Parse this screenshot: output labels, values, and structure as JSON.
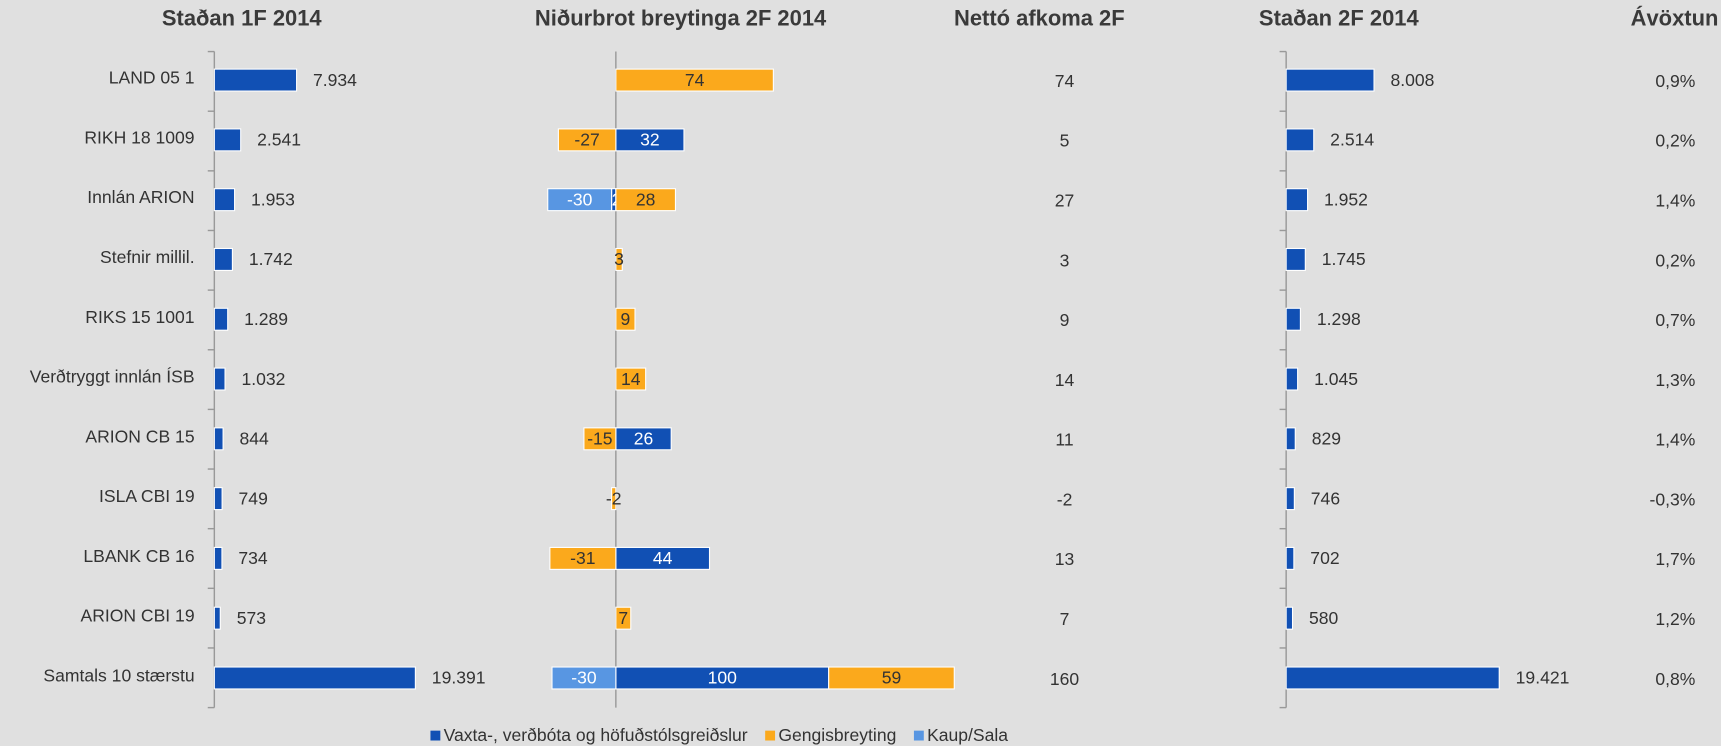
{
  "chart_data": [
    {
      "type": "hbar",
      "title": "Staðan 1F 2014",
      "categories": [
        "LAND 05 1",
        "RIKH 18 1009",
        "Innlán ARION",
        "Stefnir millil.",
        "RIKS 15 1001",
        "Verðtryggt innlán ÍSB",
        "ARION CB 15",
        "ISLA CBI 19",
        "LBANK CB 16",
        "ARION CBI 19",
        "Samtals 10 stærstu"
      ],
      "values": [
        7934,
        2541,
        1953,
        1742,
        1289,
        1032,
        844,
        749,
        734,
        573,
        19391
      ],
      "value_labels": [
        "7.934",
        "2.541",
        "1.953",
        "1.742",
        "1.289",
        "1.032",
        "844",
        "749",
        "734",
        "573",
        "19.391"
      ],
      "color": "#1150b4"
    },
    {
      "type": "stacked",
      "title": "Niðurbrot breytinga 2F 2014",
      "legend": "bottom",
      "series": [
        {
          "name": "Vaxta-, verðbóta og höfuðstólsgreiðslur",
          "color": "#1150b4",
          "values": [
            null,
            32,
            -2,
            null,
            null,
            null,
            26,
            null,
            44,
            null,
            100
          ]
        },
        {
          "name": "Gengisbreyting",
          "color": "#fba91c",
          "values": [
            74,
            -27,
            28,
            3,
            9,
            14,
            -15,
            -2,
            -31,
            7,
            59
          ]
        },
        {
          "name": "Kaup/Sala",
          "color": "#5896e2",
          "values": [
            null,
            null,
            -30,
            null,
            null,
            null,
            null,
            null,
            null,
            null,
            -30
          ]
        }
      ]
    },
    {
      "type": "labels",
      "title": "Nettó afkoma 2F",
      "values": [
        74,
        5,
        27,
        3,
        9,
        14,
        11,
        -2,
        13,
        7,
        160
      ]
    },
    {
      "type": "hbar",
      "title": "Staðan 2F 2014",
      "values": [
        8008,
        2514,
        1952,
        1745,
        1298,
        1045,
        829,
        746,
        702,
        580,
        19421
      ],
      "value_labels": [
        "8.008",
        "2.514",
        "1.952",
        "1.745",
        "1.298",
        "1.045",
        "829",
        "746",
        "702",
        "580",
        "19.421"
      ],
      "color": "#1150b4"
    },
    {
      "type": "labels",
      "title": "Ávöxtun",
      "values": [
        0.9,
        0.2,
        1.4,
        0.2,
        0.7,
        1.3,
        1.4,
        -0.3,
        1.7,
        1.2,
        0.8
      ],
      "value_labels": [
        "0,9%",
        "0,2%",
        "1,4%",
        "0,2%",
        "0,7%",
        "1,3%",
        "1,4%",
        "-0,3%",
        "1,7%",
        "1,2%",
        "0,8%"
      ]
    }
  ]
}
